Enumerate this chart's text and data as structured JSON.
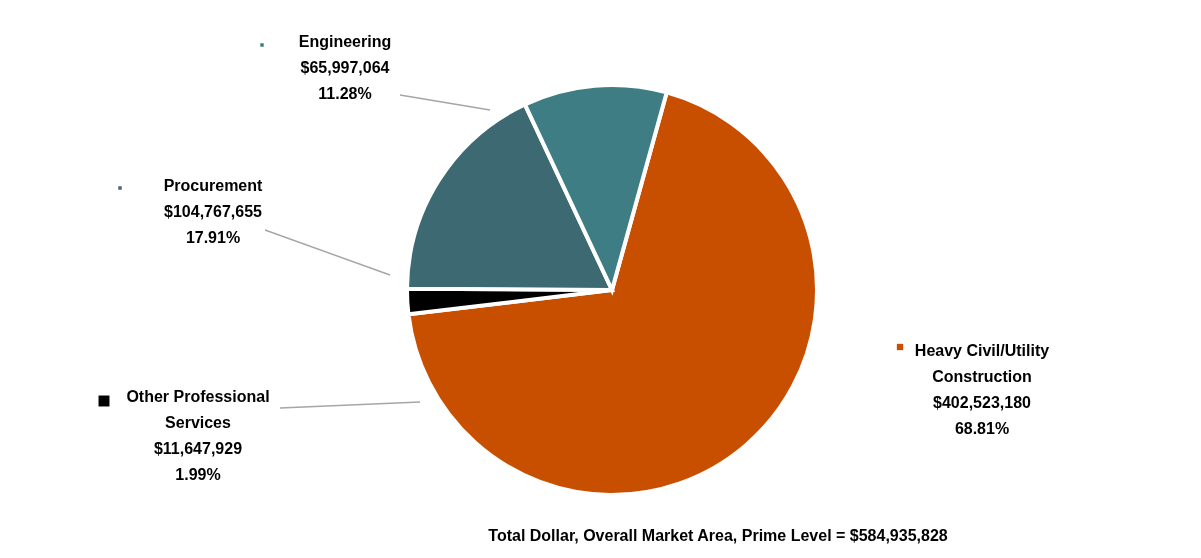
{
  "chart_data": {
    "type": "pie",
    "title": "Total Dollar, Overall Market Area, Prime Level = $584,935,828",
    "categories": [
      "Heavy Civil/Utility Construction",
      "Other Professional Services",
      "Procurement",
      "Engineering"
    ],
    "values": [
      402523180,
      11647929,
      104767655,
      65997064
    ],
    "colors": [
      "#c84f00",
      "#000000",
      "#3d6a72",
      "#3f7d84"
    ],
    "value_labels": [
      "$402,523,180\n68.81%",
      "$11,647,929\n1.99%",
      "$104,767,655\n17.91%",
      "$65,997,064\n11.28%"
    ],
    "legend": "left"
  }
}
